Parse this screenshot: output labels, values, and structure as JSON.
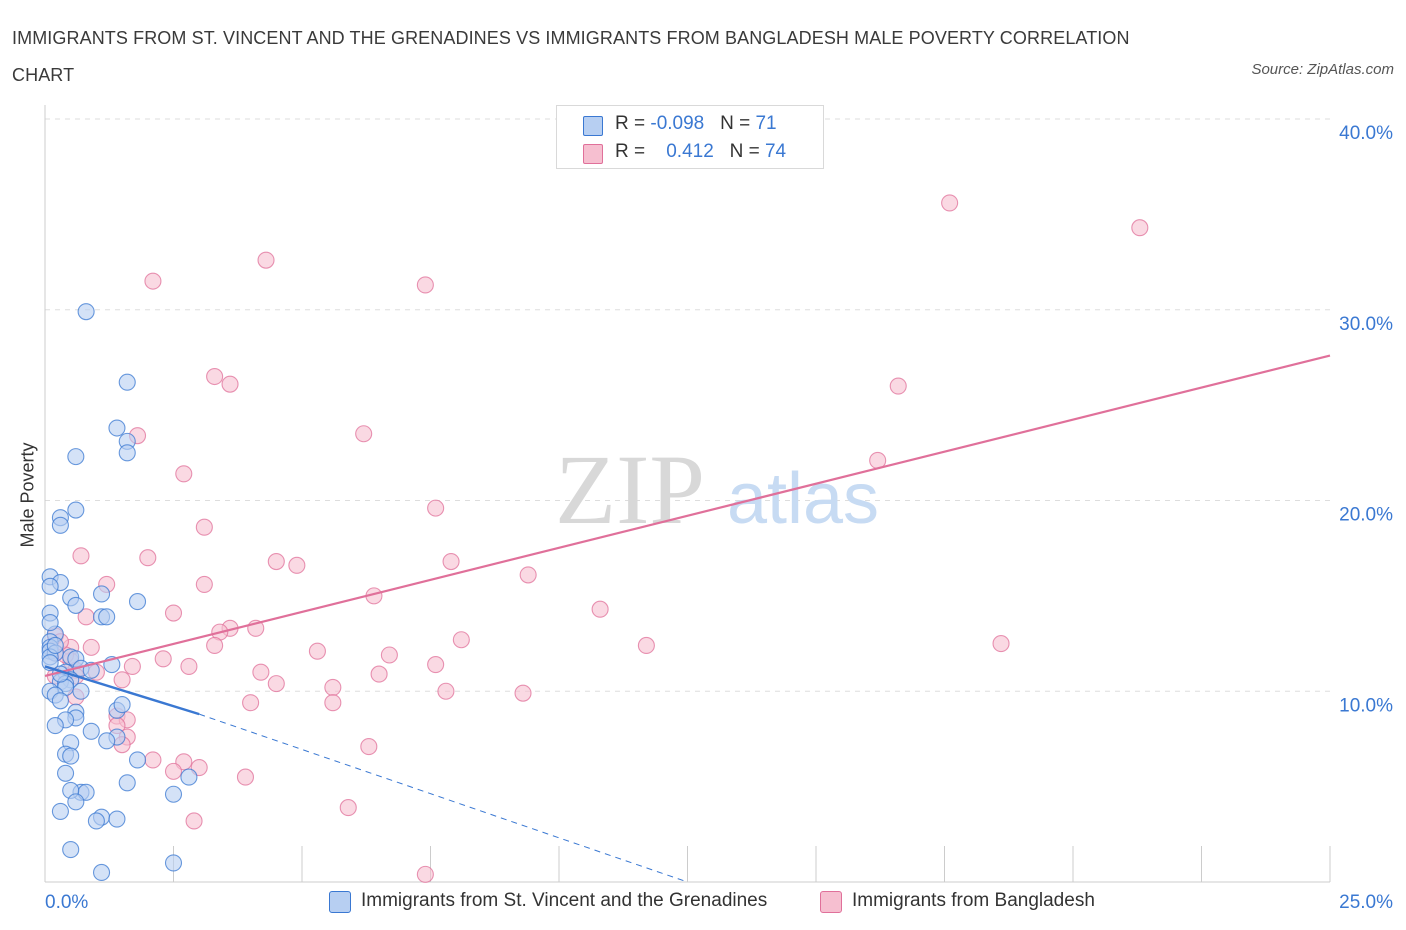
{
  "title": "IMMIGRANTS FROM ST. VINCENT AND THE GRENADINES VS IMMIGRANTS FROM BANGLADESH MALE POVERTY CORRELATION CHART",
  "source": "Source: ZipAtlas.com",
  "watermark": {
    "zip": "ZIP",
    "atlas": "atlas"
  },
  "legend": {
    "series1": {
      "r_label": "R = ",
      "r_value": "-0.098",
      "n_label": "N = ",
      "n_value": "71"
    },
    "series2": {
      "r_label": "R = ",
      "r_value": "0.412",
      "n_label": "N = ",
      "n_value": "74"
    }
  },
  "colors": {
    "blue": "#3a78d2",
    "blue_fill": "#b7cff2",
    "pink": "#e0709a",
    "pink_fill": "#f6bfd0",
    "grid": "#dddddd",
    "axis_text": "#3a78d2"
  },
  "chart_data": {
    "type": "scatter",
    "title": "IMMIGRANTS FROM ST. VINCENT AND THE GRENADINES VS IMMIGRANTS FROM BANGLADESH MALE POVERTY CORRELATION CHART",
    "xlabel": "",
    "ylabel": "Male Poverty",
    "xlim": [
      0,
      25
    ],
    "ylim": [
      0,
      40
    ],
    "x_tick_labels": [
      "0.0%",
      "25.0%"
    ],
    "y_ticks": [
      10,
      20,
      30,
      40
    ],
    "y_tick_labels": [
      "10.0%",
      "20.0%",
      "30.0%",
      "40.0%"
    ],
    "grid": true,
    "legend_position": "top-center",
    "series": [
      {
        "name": "Immigrants from St. Vincent and the Grenadines",
        "color": "#3a78d2",
        "R": -0.098,
        "N": 71,
        "trend": {
          "x": [
            0,
            3
          ],
          "y": [
            11.3,
            8.8
          ]
        },
        "trend_extension": {
          "x": [
            3,
            12.5
          ],
          "y": [
            8.8,
            0
          ]
        },
        "points": [
          [
            0.8,
            29.9
          ],
          [
            1.6,
            26.2
          ],
          [
            1.4,
            23.8
          ],
          [
            1.6,
            23.1
          ],
          [
            1.6,
            22.5
          ],
          [
            0.6,
            22.3
          ],
          [
            0.6,
            19.5
          ],
          [
            0.3,
            19.1
          ],
          [
            0.3,
            18.7
          ],
          [
            0.1,
            16.0
          ],
          [
            0.3,
            15.7
          ],
          [
            0.1,
            15.5
          ],
          [
            1.1,
            15.1
          ],
          [
            0.5,
            14.9
          ],
          [
            1.8,
            14.7
          ],
          [
            0.6,
            14.5
          ],
          [
            0.1,
            14.1
          ],
          [
            1.1,
            13.9
          ],
          [
            1.2,
            13.9
          ],
          [
            0.2,
            13.0
          ],
          [
            0.1,
            12.6
          ],
          [
            0.1,
            12.3
          ],
          [
            0.1,
            12.1
          ],
          [
            0.2,
            12.0
          ],
          [
            0.1,
            11.8
          ],
          [
            0.5,
            11.8
          ],
          [
            0.6,
            11.7
          ],
          [
            0.1,
            11.5
          ],
          [
            1.3,
            11.4
          ],
          [
            0.7,
            11.2
          ],
          [
            0.4,
            11.0
          ],
          [
            0.5,
            10.6
          ],
          [
            0.3,
            10.5
          ],
          [
            0.4,
            10.4
          ],
          [
            0.4,
            10.2
          ],
          [
            0.1,
            10.0
          ],
          [
            0.2,
            9.8
          ],
          [
            0.3,
            9.5
          ],
          [
            1.4,
            9.0
          ],
          [
            0.6,
            8.9
          ],
          [
            0.6,
            8.6
          ],
          [
            0.4,
            8.5
          ],
          [
            0.2,
            8.2
          ],
          [
            0.9,
            7.9
          ],
          [
            1.4,
            7.6
          ],
          [
            1.2,
            7.4
          ],
          [
            0.5,
            7.3
          ],
          [
            0.4,
            6.7
          ],
          [
            0.5,
            6.6
          ],
          [
            1.8,
            6.4
          ],
          [
            0.4,
            5.7
          ],
          [
            2.8,
            5.5
          ],
          [
            1.6,
            5.2
          ],
          [
            0.7,
            4.7
          ],
          [
            0.8,
            4.7
          ],
          [
            0.5,
            4.8
          ],
          [
            2.5,
            4.6
          ],
          [
            0.6,
            4.2
          ],
          [
            0.3,
            3.7
          ],
          [
            1.1,
            3.4
          ],
          [
            1.4,
            3.3
          ],
          [
            1.0,
            3.2
          ],
          [
            0.5,
            1.7
          ],
          [
            2.5,
            1.0
          ],
          [
            1.1,
            0.5
          ],
          [
            0.2,
            12.4
          ],
          [
            0.3,
            10.9
          ],
          [
            0.9,
            11.1
          ],
          [
            0.1,
            13.6
          ],
          [
            1.5,
            9.3
          ],
          [
            0.7,
            10.0
          ]
        ]
      },
      {
        "name": "Immigrants from Bangladesh",
        "color": "#e0709a",
        "R": 0.412,
        "N": 74,
        "trend": {
          "x": [
            0,
            25
          ],
          "y": [
            10.8,
            27.6
          ]
        },
        "points": [
          [
            17.6,
            35.6
          ],
          [
            21.3,
            34.3
          ],
          [
            4.3,
            32.6
          ],
          [
            2.1,
            31.5
          ],
          [
            7.4,
            31.3
          ],
          [
            3.3,
            26.5
          ],
          [
            3.6,
            26.1
          ],
          [
            16.6,
            26.0
          ],
          [
            1.8,
            23.4
          ],
          [
            6.2,
            23.5
          ],
          [
            16.2,
            22.1
          ],
          [
            2.7,
            21.4
          ],
          [
            7.6,
            19.6
          ],
          [
            3.1,
            18.6
          ],
          [
            0.7,
            17.1
          ],
          [
            2.0,
            17.0
          ],
          [
            4.5,
            16.8
          ],
          [
            7.9,
            16.8
          ],
          [
            4.9,
            16.6
          ],
          [
            9.4,
            16.1
          ],
          [
            1.2,
            15.6
          ],
          [
            3.1,
            15.6
          ],
          [
            6.4,
            15.0
          ],
          [
            10.8,
            14.3
          ],
          [
            2.5,
            14.1
          ],
          [
            0.8,
            13.9
          ],
          [
            3.6,
            13.3
          ],
          [
            4.1,
            13.3
          ],
          [
            3.4,
            13.1
          ],
          [
            0.2,
            12.9
          ],
          [
            8.1,
            12.7
          ],
          [
            11.7,
            12.4
          ],
          [
            3.3,
            12.4
          ],
          [
            0.5,
            12.3
          ],
          [
            0.2,
            12.0
          ],
          [
            5.3,
            12.1
          ],
          [
            6.7,
            11.9
          ],
          [
            2.3,
            11.7
          ],
          [
            0.5,
            11.6
          ],
          [
            18.6,
            12.5
          ],
          [
            7.6,
            11.4
          ],
          [
            1.7,
            11.3
          ],
          [
            0.6,
            11.1
          ],
          [
            4.2,
            11.0
          ],
          [
            6.5,
            10.9
          ],
          [
            1.0,
            11.0
          ],
          [
            0.2,
            10.8
          ],
          [
            4.5,
            10.4
          ],
          [
            5.6,
            10.2
          ],
          [
            7.8,
            10.0
          ],
          [
            9.3,
            9.9
          ],
          [
            0.6,
            9.7
          ],
          [
            5.6,
            9.4
          ],
          [
            4.0,
            9.4
          ],
          [
            1.4,
            8.7
          ],
          [
            1.6,
            8.5
          ],
          [
            1.4,
            8.2
          ],
          [
            1.6,
            7.6
          ],
          [
            1.5,
            7.2
          ],
          [
            6.3,
            7.1
          ],
          [
            2.1,
            6.4
          ],
          [
            2.7,
            6.3
          ],
          [
            3.0,
            6.0
          ],
          [
            2.5,
            5.8
          ],
          [
            3.9,
            5.5
          ],
          [
            5.9,
            3.9
          ],
          [
            2.9,
            3.2
          ],
          [
            7.4,
            0.4
          ],
          [
            0.4,
            11.9
          ],
          [
            0.9,
            12.3
          ],
          [
            2.8,
            11.3
          ],
          [
            1.5,
            10.6
          ],
          [
            0.3,
            12.6
          ],
          [
            0.6,
            10.8
          ]
        ]
      }
    ]
  }
}
